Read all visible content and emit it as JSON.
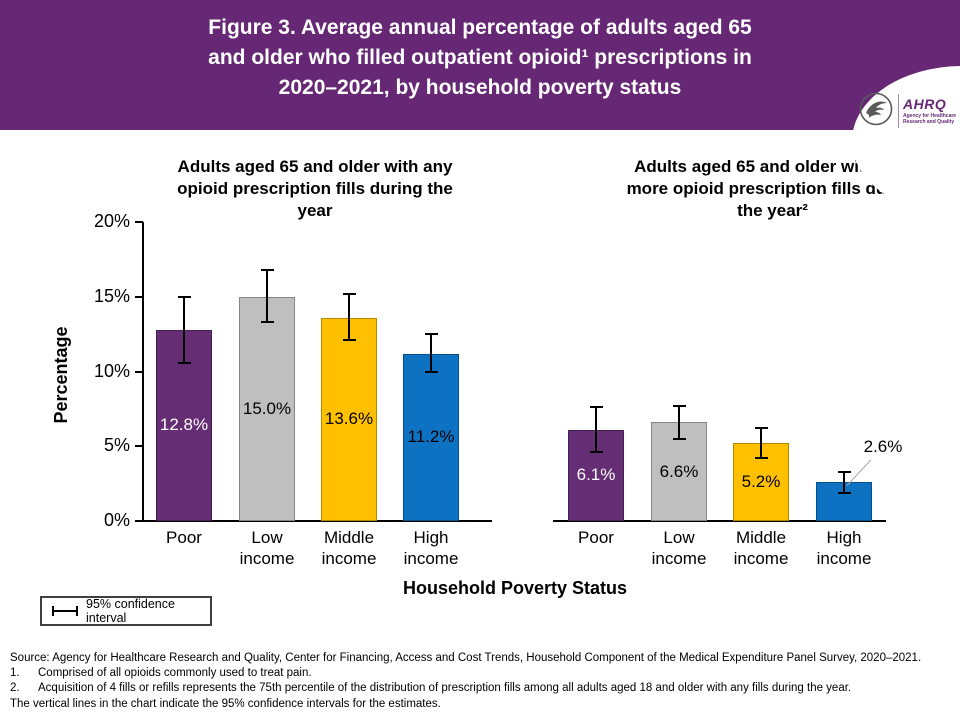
{
  "header": {
    "title": "Figure 3. Average annual percentage of adults aged 65\nand older who filled outpatient opioid¹ prescriptions in\n2020–2021, by household poverty status",
    "background_color": "#662874",
    "logo": {
      "hhs_icon": "hhs-eagle-icon",
      "wordmark": "AHRQ",
      "tagline": "Agency for Healthcare\nResearch and Quality"
    }
  },
  "chart_data": {
    "type": "bar",
    "categories": [
      "Poor",
      "Low\nincome",
      "Middle\nincome",
      "High\nincome"
    ],
    "xlabel": "Household Poverty Status",
    "ylabel": "Percentage",
    "ylim": [
      0,
      20
    ],
    "yticks": [
      "0%",
      "5%",
      "10%",
      "15%",
      "20%"
    ],
    "grid": false,
    "legend": "95% confidence interval",
    "legend_position": "bottom-left",
    "bar_colors": [
      "#652d74",
      "#bfbfbf",
      "#ffc000",
      "#0e72c2"
    ],
    "bar_label_colors": [
      "#ffffff",
      "#000000",
      "#000000",
      "#000000"
    ],
    "error_bar_meaning": "95% confidence interval",
    "panels": [
      {
        "title": "Adults aged 65 and older with any\nopioid prescription fills during the\nyear",
        "series_name": "Any opioid prescription fills",
        "values": [
          12.8,
          15.0,
          13.6,
          11.2
        ],
        "labels": [
          "12.8%",
          "15.0%",
          "13.6%",
          "11.2%"
        ],
        "ci_low": [
          10.6,
          13.3,
          12.1,
          10.0
        ],
        "ci_high": [
          15.0,
          16.8,
          15.2,
          12.5
        ],
        "callout_label_index": -1
      },
      {
        "title": "Adults aged 65 and older with 4 or\nmore opioid prescription fills during\nthe year²",
        "series_name": "4 or more opioid prescription fills",
        "values": [
          6.1,
          6.6,
          5.2,
          2.6
        ],
        "labels": [
          "6.1%",
          "6.6%",
          "5.2%",
          "2.6%"
        ],
        "ci_low": [
          4.6,
          5.5,
          4.2,
          1.9
        ],
        "ci_high": [
          7.6,
          7.7,
          6.2,
          3.3
        ],
        "callout_label_index": 3
      }
    ]
  },
  "footer": {
    "source": "Source: Agency for Healthcare Research and Quality, Center for Financing, Access and Cost Trends, Household Component of the Medical Expenditure Panel Survey, 2020–2021.",
    "notes": [
      {
        "num": "1.",
        "text": "Comprised of all opioids commonly used to treat pain."
      },
      {
        "num": "2.",
        "text": "Acquisition of 4 fills or refills represents the 75th percentile of the distribution of prescription fills among all adults aged 18 and older with any fills during the year."
      }
    ],
    "footnote": "The vertical lines in the chart indicate the 95% confidence intervals for the estimates."
  }
}
